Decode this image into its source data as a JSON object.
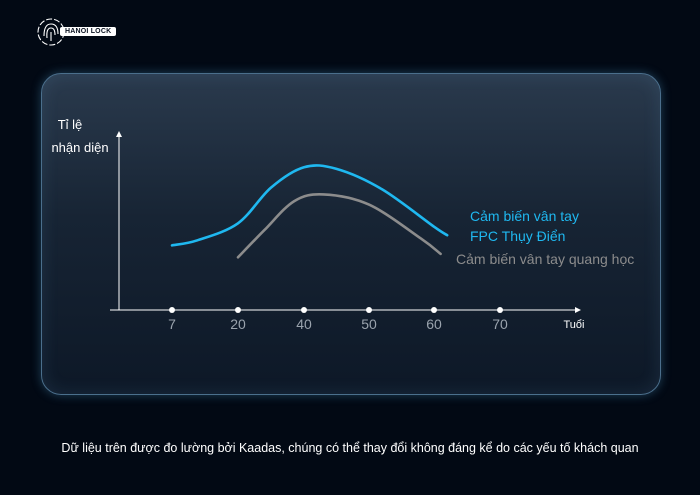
{
  "logo": {
    "text": "HANOI LOCK"
  },
  "chart_data": {
    "type": "line",
    "ylabel_lines": [
      "Tỉ lệ",
      "nhận diện"
    ],
    "xlabel": "Tuổi",
    "x_ticks": [
      7,
      20,
      40,
      50,
      60,
      70
    ],
    "y_ticks": [],
    "series": [
      {
        "name_lines": [
          "Cảm biến vân tay",
          "FPC Thụy Điển"
        ],
        "color": "#1fb8f0",
        "points": [
          [
            7,
            0.38
          ],
          [
            12,
            0.41
          ],
          [
            20,
            0.51
          ],
          [
            30,
            0.72
          ],
          [
            40,
            0.84
          ],
          [
            45,
            0.83
          ],
          [
            52,
            0.71
          ],
          [
            60,
            0.49
          ],
          [
            62,
            0.44
          ]
        ]
      },
      {
        "name_lines": [
          "Cảm biến vân tay quang học"
        ],
        "color": "#8c8c8c",
        "points": [
          [
            20,
            0.31
          ],
          [
            28,
            0.47
          ],
          [
            37,
            0.64
          ],
          [
            43,
            0.68
          ],
          [
            50,
            0.62
          ],
          [
            58,
            0.42
          ],
          [
            61,
            0.33
          ]
        ]
      }
    ]
  },
  "footer": {
    "note": "Dữ liệu trên được đo lường bởi Kaadas, chúng có thể thay đổi không đáng kể do các yếu tố khách quan"
  }
}
